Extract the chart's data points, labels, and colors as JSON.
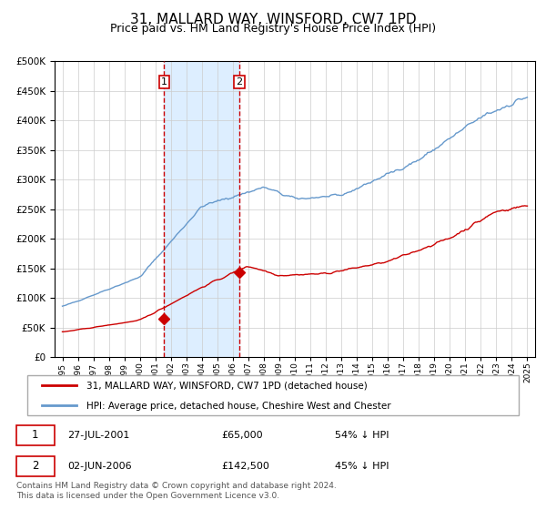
{
  "title": "31, MALLARD WAY, WINSFORD, CW7 1PD",
  "subtitle": "Price paid vs. HM Land Registry's House Price Index (HPI)",
  "title_fontsize": 11,
  "subtitle_fontsize": 9,
  "ylabel_fontsize": 8,
  "xlabel_fontsize": 7,
  "legend_label_red": "31, MALLARD WAY, WINSFORD, CW7 1PD (detached house)",
  "legend_label_blue": "HPI: Average price, detached house, Cheshire West and Chester",
  "table_rows": [
    {
      "num": "1",
      "date": "27-JUL-2001",
      "price": "£65,000",
      "pct": "54% ↓ HPI"
    },
    {
      "num": "2",
      "date": "02-JUN-2006",
      "price": "£142,500",
      "pct": "45% ↓ HPI"
    }
  ],
  "footnote": "Contains HM Land Registry data © Crown copyright and database right 2024.\nThis data is licensed under the Open Government Licence v3.0.",
  "footnote_fontsize": 6.5,
  "red_color": "#cc0000",
  "blue_color": "#6699cc",
  "shade_color": "#ddeeff",
  "grid_color": "#cccccc",
  "marker1_x": 2001.57,
  "marker1_y": 65000,
  "marker2_x": 2006.42,
  "marker2_y": 142500,
  "vline1_x": 2001.57,
  "vline2_x": 2006.42,
  "ylim": [
    0,
    500000
  ],
  "xlim": [
    1994.5,
    2025.5
  ]
}
